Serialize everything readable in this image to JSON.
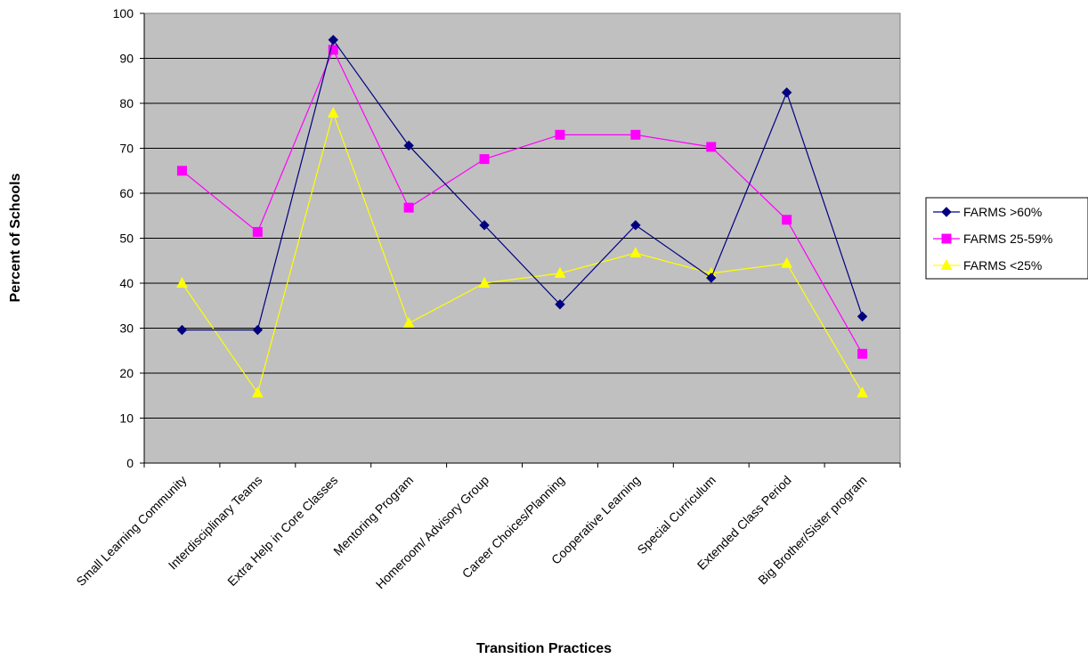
{
  "chart_data": {
    "type": "line",
    "title": "",
    "xlabel": "Transition Practices",
    "ylabel": "Percent of Schools",
    "ylim": [
      0,
      100
    ],
    "yticks": [
      0,
      10,
      20,
      30,
      40,
      50,
      60,
      70,
      80,
      90,
      100
    ],
    "grid": true,
    "legend_position": "right",
    "plot_background": "#C0C0C0",
    "categories": [
      "Small Learning  Community",
      "Interdisciplinary Teams",
      "Extra Help in Core Classes",
      "Mentoring Program",
      "Homeroom/ Advisory Group",
      "Career Choices/Planning",
      "Cooperative Learning",
      "Special Curriculum",
      "Extended Class Period",
      "Big Brother/Sister program"
    ],
    "series": [
      {
        "name": "FARMS >60%",
        "color": "#000080",
        "marker": "diamond",
        "values": [
          29.6,
          29.6,
          94.1,
          70.6,
          52.9,
          35.3,
          52.9,
          41.2,
          82.4,
          32.6
        ]
      },
      {
        "name": "FARMS 25-59%",
        "color": "#FF00FF",
        "marker": "square",
        "values": [
          65.0,
          51.4,
          91.9,
          56.8,
          67.6,
          73.0,
          73.0,
          70.3,
          54.1,
          24.3
        ]
      },
      {
        "name": "FARMS <25%",
        "color": "#FFFF00",
        "marker": "triangle",
        "values": [
          40.0,
          15.6,
          77.8,
          31.1,
          40.0,
          42.2,
          46.7,
          42.2,
          44.4,
          15.6
        ]
      }
    ]
  }
}
